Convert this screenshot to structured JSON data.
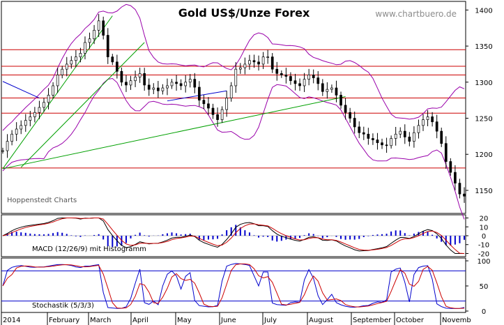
{
  "chart_data": {
    "type": "line",
    "title": "Gold US$/Unze Forex",
    "source": "www.chartbuero.de",
    "watermark": "Hoppenstedt Charts",
    "x_labels": [
      "2014",
      "February",
      "March",
      "April",
      "May",
      "June",
      "July",
      "August",
      "September",
      "October",
      "Novemb"
    ],
    "price": {
      "ylim": [
        1120,
        1410
      ],
      "yticks": [
        1150,
        1200,
        1250,
        1300,
        1350,
        1400
      ],
      "closes": [
        1205,
        1218,
        1228,
        1235,
        1240,
        1247,
        1252,
        1258,
        1265,
        1272,
        1282,
        1295,
        1310,
        1318,
        1325,
        1330,
        1335,
        1340,
        1355,
        1360,
        1372,
        1385,
        1365,
        1335,
        1328,
        1315,
        1300,
        1296,
        1302,
        1307,
        1312,
        1296,
        1290,
        1292,
        1288,
        1292,
        1295,
        1300,
        1298,
        1295,
        1300,
        1304,
        1293,
        1275,
        1270,
        1264,
        1255,
        1248,
        1262,
        1278,
        1295,
        1318,
        1320,
        1325,
        1330,
        1328,
        1325,
        1335,
        1335,
        1318,
        1312,
        1310,
        1308,
        1302,
        1298,
        1295,
        1304,
        1310,
        1306,
        1298,
        1287,
        1290,
        1292,
        1282,
        1268,
        1258,
        1250,
        1238,
        1230,
        1228,
        1222,
        1220,
        1216,
        1213,
        1212,
        1222,
        1228,
        1232,
        1224,
        1218,
        1230,
        1240,
        1248,
        1252,
        1245,
        1232,
        1215,
        1190,
        1175,
        1160,
        1145,
        1142
      ],
      "horizontal_lines": [
        1181,
        1257,
        1278,
        1310,
        1322,
        1345
      ],
      "trend_lines": [
        {
          "color": "#00a000",
          "points": [
            [
              0,
              1180
            ],
            [
              75,
              1280
            ]
          ]
        },
        {
          "color": "#00a000",
          "points": [
            [
              0,
              1180
            ],
            [
              24,
              1392
            ]
          ]
        },
        {
          "color": "#00a000",
          "points": [
            [
              4,
              1182
            ],
            [
              31,
              1355
            ]
          ]
        },
        {
          "color": "#0000cc",
          "points": [
            [
              36,
              1274
            ],
            [
              49,
              1288
            ]
          ]
        },
        {
          "color": "#0000cc",
          "points": [
            [
              0,
              1301
            ],
            [
              8,
              1278
            ]
          ]
        }
      ]
    },
    "macd": {
      "label": "MACD (12/26/9) mit Histogramm",
      "ylim": [
        -22,
        22
      ],
      "yticks": [
        20,
        10,
        0,
        -10,
        -20
      ]
    },
    "stochastik": {
      "label": "Stochastik (5/3/3)",
      "ylim": [
        0,
        100
      ],
      "yticks": [
        100,
        50,
        0
      ],
      "levels": [
        80,
        20
      ]
    },
    "colors": {
      "candle": "#000000",
      "bollinger": "#9900aa",
      "horizontal": "#cc0000",
      "macd_line": "#000000",
      "signal_line": "#cc0000",
      "histogram": "#0000cc",
      "stoch_k": "#0000cc",
      "stoch_d": "#cc0000",
      "level_line": "#0000cc"
    }
  }
}
